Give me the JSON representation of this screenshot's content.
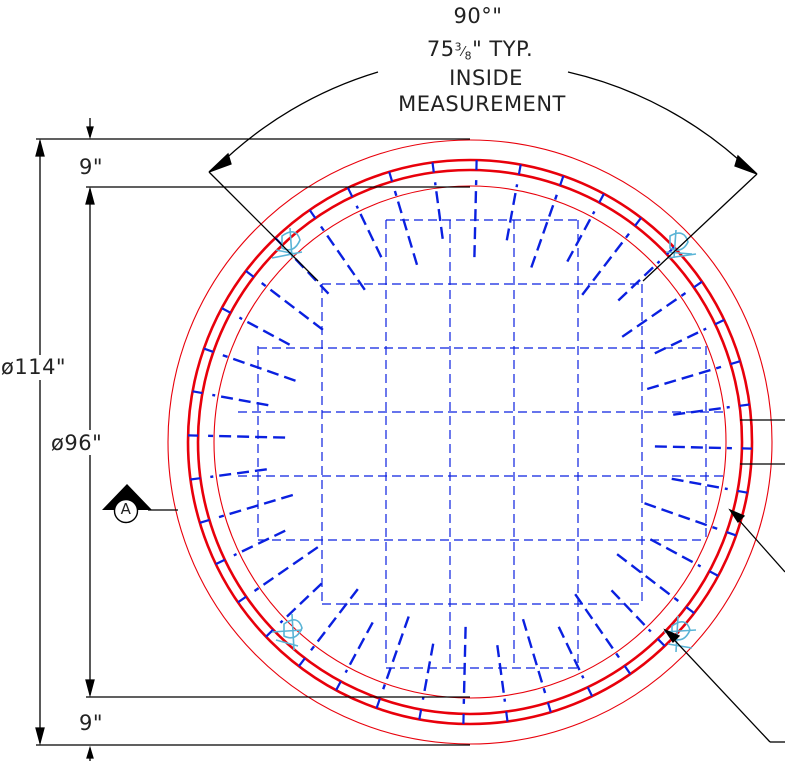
{
  "angle_label": "90°\"",
  "typ_prefix": "75",
  "typ_frac_num": "3",
  "typ_frac_den": "8",
  "typ_suffix": "\" TYP.",
  "inside_label": "INSIDE",
  "measurement_label": "MEASUREMENT",
  "top_offset_label": "9\"",
  "bottom_offset_label": "9\"",
  "outer_diameter_label": "ø114\"",
  "inner_diameter_label": "ø96\"",
  "section_marker": "A",
  "colors": {
    "rings": "#e8000b",
    "rebar": "#0a20e0",
    "dimension": "#000000",
    "hardware": "#5ab4d6"
  }
}
